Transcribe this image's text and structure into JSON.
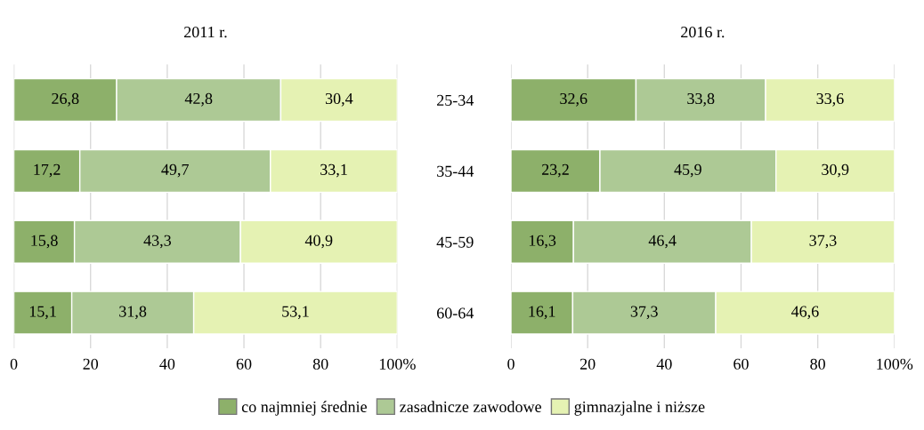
{
  "chart_data": [
    {
      "type": "bar",
      "orientation": "horizontal",
      "stacked": true,
      "title": "2011 r.",
      "categories": [
        null,
        null,
        null,
        null
      ],
      "series": [
        {
          "name": "co najmniej średnie",
          "color": "#8db06a",
          "values": [
            26.8,
            17.2,
            15.8,
            15.1
          ]
        },
        {
          "name": "zasadnicze zawodowe",
          "color": "#adc995",
          "values": [
            42.8,
            49.7,
            43.3,
            31.8
          ]
        },
        {
          "name": "gimnazjalne i niższe",
          "color": "#e5f2b3",
          "values": [
            30.4,
            33.1,
            40.9,
            53.1
          ]
        }
      ],
      "value_labels": [
        [
          "26,8",
          "17,2",
          "15,8",
          "15,1"
        ],
        [
          "42,8",
          "49,7",
          "43,3",
          "31,8"
        ],
        [
          "30,4",
          "33,1",
          "40,9",
          "53,1"
        ]
      ],
      "xlim": [
        0,
        100
      ],
      "xticks": [
        0,
        20,
        40,
        60,
        80,
        {
          "value": 100,
          "label": "100%"
        }
      ],
      "grid": "x",
      "tick_labels": "x",
      "legend": "bottom"
    },
    {
      "type": "bar",
      "orientation": "horizontal",
      "stacked": true,
      "title": "2016 r.",
      "categories": [
        "25-34",
        "35-44",
        "45-59",
        "60-64"
      ],
      "series": [
        {
          "color": "#8db06a",
          "values": [
            32.6,
            23.2,
            16.3,
            16.1
          ]
        },
        {
          "color": "#adc995",
          "values": [
            33.8,
            45.9,
            46.4,
            37.3
          ]
        },
        {
          "color": "#e5f2b3",
          "values": [
            33.6,
            30.9,
            37.3,
            46.6
          ]
        }
      ],
      "value_labels": [
        [
          "32,6",
          "23,2",
          "16,3",
          "16,1"
        ],
        [
          "33,8",
          "45,9",
          "46,4",
          "37,3"
        ],
        [
          "33,6",
          "30,9",
          "37,3",
          "46,6"
        ]
      ],
      "xlim": [
        0,
        100
      ],
      "xticks": [
        0,
        20,
        40,
        60,
        80,
        {
          "value": 100,
          "label": "100%"
        }
      ],
      "grid": "x"
    }
  ]
}
